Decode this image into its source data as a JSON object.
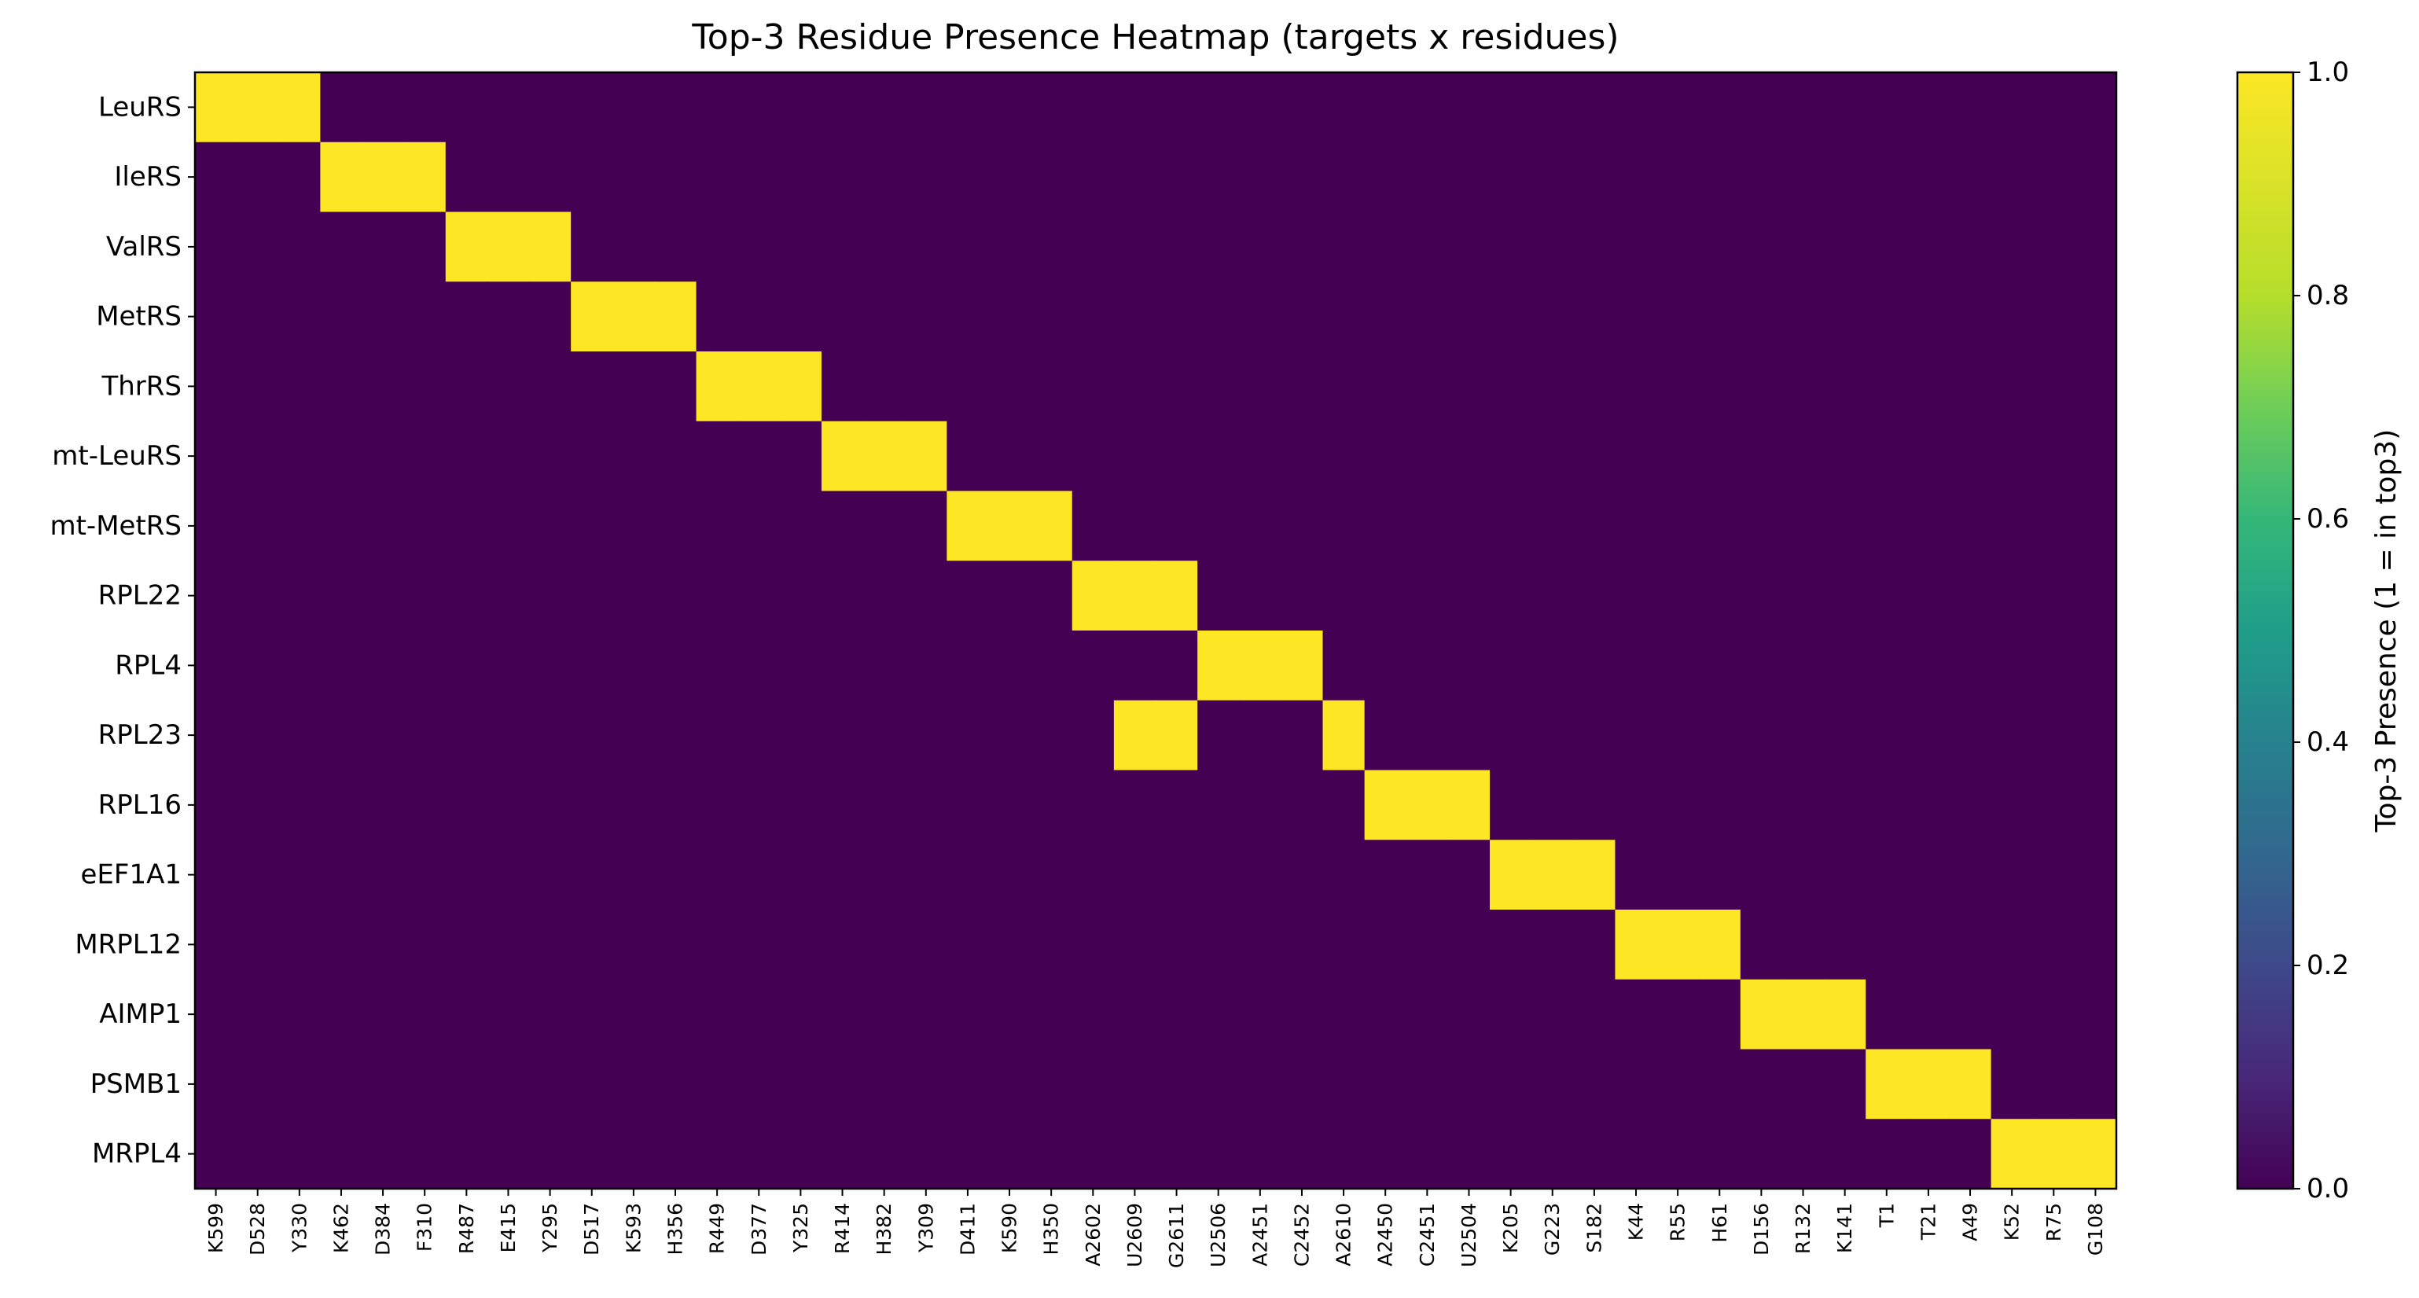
{
  "chart_data": {
    "type": "heatmap",
    "title": "Top-3 Residue Presence Heatmap (targets x residues)",
    "xlabel": "",
    "ylabel": "",
    "rows": [
      "LeuRS",
      "IleRS",
      "ValRS",
      "MetRS",
      "ThrRS",
      "mt-LeuRS",
      "mt-MetRS",
      "RPL22",
      "RPL4",
      "RPL23",
      "RPL16",
      "eEF1A1",
      "MRPL12",
      "AIMP1",
      "PSMB1",
      "MRPL4"
    ],
    "columns": [
      "K599",
      "D528",
      "Y330",
      "K462",
      "D384",
      "F310",
      "R487",
      "E415",
      "Y295",
      "D517",
      "K593",
      "H356",
      "R449",
      "D377",
      "Y325",
      "R414",
      "H382",
      "Y309",
      "D411",
      "K590",
      "H350",
      "A2602",
      "U2609",
      "G2611",
      "U2506",
      "A2451",
      "C2452",
      "A2610",
      "A2450",
      "C2451",
      "U2504",
      "K205",
      "G223",
      "S182",
      "K44",
      "R55",
      "H61",
      "D156",
      "R132",
      "K141",
      "T1",
      "T21",
      "A49",
      "K52",
      "R75",
      "G108"
    ],
    "values": [
      [
        1,
        1,
        1,
        0,
        0,
        0,
        0,
        0,
        0,
        0,
        0,
        0,
        0,
        0,
        0,
        0,
        0,
        0,
        0,
        0,
        0,
        0,
        0,
        0,
        0,
        0,
        0,
        0,
        0,
        0,
        0,
        0,
        0,
        0,
        0,
        0,
        0,
        0,
        0,
        0,
        0,
        0,
        0,
        0,
        0,
        0
      ],
      [
        0,
        0,
        0,
        1,
        1,
        1,
        0,
        0,
        0,
        0,
        0,
        0,
        0,
        0,
        0,
        0,
        0,
        0,
        0,
        0,
        0,
        0,
        0,
        0,
        0,
        0,
        0,
        0,
        0,
        0,
        0,
        0,
        0,
        0,
        0,
        0,
        0,
        0,
        0,
        0,
        0,
        0,
        0,
        0,
        0,
        0
      ],
      [
        0,
        0,
        0,
        0,
        0,
        0,
        1,
        1,
        1,
        0,
        0,
        0,
        0,
        0,
        0,
        0,
        0,
        0,
        0,
        0,
        0,
        0,
        0,
        0,
        0,
        0,
        0,
        0,
        0,
        0,
        0,
        0,
        0,
        0,
        0,
        0,
        0,
        0,
        0,
        0,
        0,
        0,
        0,
        0,
        0,
        0
      ],
      [
        0,
        0,
        0,
        0,
        0,
        0,
        0,
        0,
        0,
        1,
        1,
        1,
        0,
        0,
        0,
        0,
        0,
        0,
        0,
        0,
        0,
        0,
        0,
        0,
        0,
        0,
        0,
        0,
        0,
        0,
        0,
        0,
        0,
        0,
        0,
        0,
        0,
        0,
        0,
        0,
        0,
        0,
        0,
        0,
        0,
        0
      ],
      [
        0,
        0,
        0,
        0,
        0,
        0,
        0,
        0,
        0,
        0,
        0,
        0,
        1,
        1,
        1,
        0,
        0,
        0,
        0,
        0,
        0,
        0,
        0,
        0,
        0,
        0,
        0,
        0,
        0,
        0,
        0,
        0,
        0,
        0,
        0,
        0,
        0,
        0,
        0,
        0,
        0,
        0,
        0,
        0,
        0,
        0
      ],
      [
        0,
        0,
        0,
        0,
        0,
        0,
        0,
        0,
        0,
        0,
        0,
        0,
        0,
        0,
        0,
        1,
        1,
        1,
        0,
        0,
        0,
        0,
        0,
        0,
        0,
        0,
        0,
        0,
        0,
        0,
        0,
        0,
        0,
        0,
        0,
        0,
        0,
        0,
        0,
        0,
        0,
        0,
        0,
        0,
        0,
        0
      ],
      [
        0,
        0,
        0,
        0,
        0,
        0,
        0,
        0,
        0,
        0,
        0,
        0,
        0,
        0,
        0,
        0,
        0,
        0,
        1,
        1,
        1,
        0,
        0,
        0,
        0,
        0,
        0,
        0,
        0,
        0,
        0,
        0,
        0,
        0,
        0,
        0,
        0,
        0,
        0,
        0,
        0,
        0,
        0,
        0,
        0,
        0
      ],
      [
        0,
        0,
        0,
        0,
        0,
        0,
        0,
        0,
        0,
        0,
        0,
        0,
        0,
        0,
        0,
        0,
        0,
        0,
        0,
        0,
        0,
        1,
        1,
        1,
        0,
        0,
        0,
        0,
        0,
        0,
        0,
        0,
        0,
        0,
        0,
        0,
        0,
        0,
        0,
        0,
        0,
        0,
        0,
        0,
        0,
        0
      ],
      [
        0,
        0,
        0,
        0,
        0,
        0,
        0,
        0,
        0,
        0,
        0,
        0,
        0,
        0,
        0,
        0,
        0,
        0,
        0,
        0,
        0,
        0,
        0,
        0,
        1,
        1,
        1,
        0,
        0,
        0,
        0,
        0,
        0,
        0,
        0,
        0,
        0,
        0,
        0,
        0,
        0,
        0,
        0,
        0,
        0,
        0
      ],
      [
        0,
        0,
        0,
        0,
        0,
        0,
        0,
        0,
        0,
        0,
        0,
        0,
        0,
        0,
        0,
        0,
        0,
        0,
        0,
        0,
        0,
        0,
        1,
        1,
        0,
        0,
        0,
        1,
        0,
        0,
        0,
        0,
        0,
        0,
        0,
        0,
        0,
        0,
        0,
        0,
        0,
        0,
        0,
        0,
        0,
        0
      ],
      [
        0,
        0,
        0,
        0,
        0,
        0,
        0,
        0,
        0,
        0,
        0,
        0,
        0,
        0,
        0,
        0,
        0,
        0,
        0,
        0,
        0,
        0,
        0,
        0,
        0,
        0,
        0,
        0,
        1,
        1,
        1,
        0,
        0,
        0,
        0,
        0,
        0,
        0,
        0,
        0,
        0,
        0,
        0,
        0,
        0,
        0
      ],
      [
        0,
        0,
        0,
        0,
        0,
        0,
        0,
        0,
        0,
        0,
        0,
        0,
        0,
        0,
        0,
        0,
        0,
        0,
        0,
        0,
        0,
        0,
        0,
        0,
        0,
        0,
        0,
        0,
        0,
        0,
        0,
        1,
        1,
        1,
        0,
        0,
        0,
        0,
        0,
        0,
        0,
        0,
        0,
        0,
        0,
        0
      ],
      [
        0,
        0,
        0,
        0,
        0,
        0,
        0,
        0,
        0,
        0,
        0,
        0,
        0,
        0,
        0,
        0,
        0,
        0,
        0,
        0,
        0,
        0,
        0,
        0,
        0,
        0,
        0,
        0,
        0,
        0,
        0,
        0,
        0,
        0,
        1,
        1,
        1,
        0,
        0,
        0,
        0,
        0,
        0,
        0,
        0,
        0
      ],
      [
        0,
        0,
        0,
        0,
        0,
        0,
        0,
        0,
        0,
        0,
        0,
        0,
        0,
        0,
        0,
        0,
        0,
        0,
        0,
        0,
        0,
        0,
        0,
        0,
        0,
        0,
        0,
        0,
        0,
        0,
        0,
        0,
        0,
        0,
        0,
        0,
        0,
        1,
        1,
        1,
        0,
        0,
        0,
        0,
        0,
        0
      ],
      [
        0,
        0,
        0,
        0,
        0,
        0,
        0,
        0,
        0,
        0,
        0,
        0,
        0,
        0,
        0,
        0,
        0,
        0,
        0,
        0,
        0,
        0,
        0,
        0,
        0,
        0,
        0,
        0,
        0,
        0,
        0,
        0,
        0,
        0,
        0,
        0,
        0,
        0,
        0,
        0,
        1,
        1,
        1,
        0,
        0,
        0
      ],
      [
        0,
        0,
        0,
        0,
        0,
        0,
        0,
        0,
        0,
        0,
        0,
        0,
        0,
        0,
        0,
        0,
        0,
        0,
        0,
        0,
        0,
        0,
        0,
        0,
        0,
        0,
        0,
        0,
        0,
        0,
        0,
        0,
        0,
        0,
        0,
        0,
        0,
        0,
        0,
        0,
        0,
        0,
        0,
        1,
        1,
        1
      ]
    ],
    "colorbar": {
      "label": "Top-3 Presence (1 = in top3)",
      "range": [
        0.0,
        1.0
      ],
      "ticks": [
        "0.0",
        "0.2",
        "0.4",
        "0.6",
        "0.8",
        "1.0"
      ],
      "colormap": "viridis"
    },
    "colors": {
      "low": "#440154",
      "high": "#fde725"
    },
    "grid": false,
    "legend": "colorbar-right"
  }
}
